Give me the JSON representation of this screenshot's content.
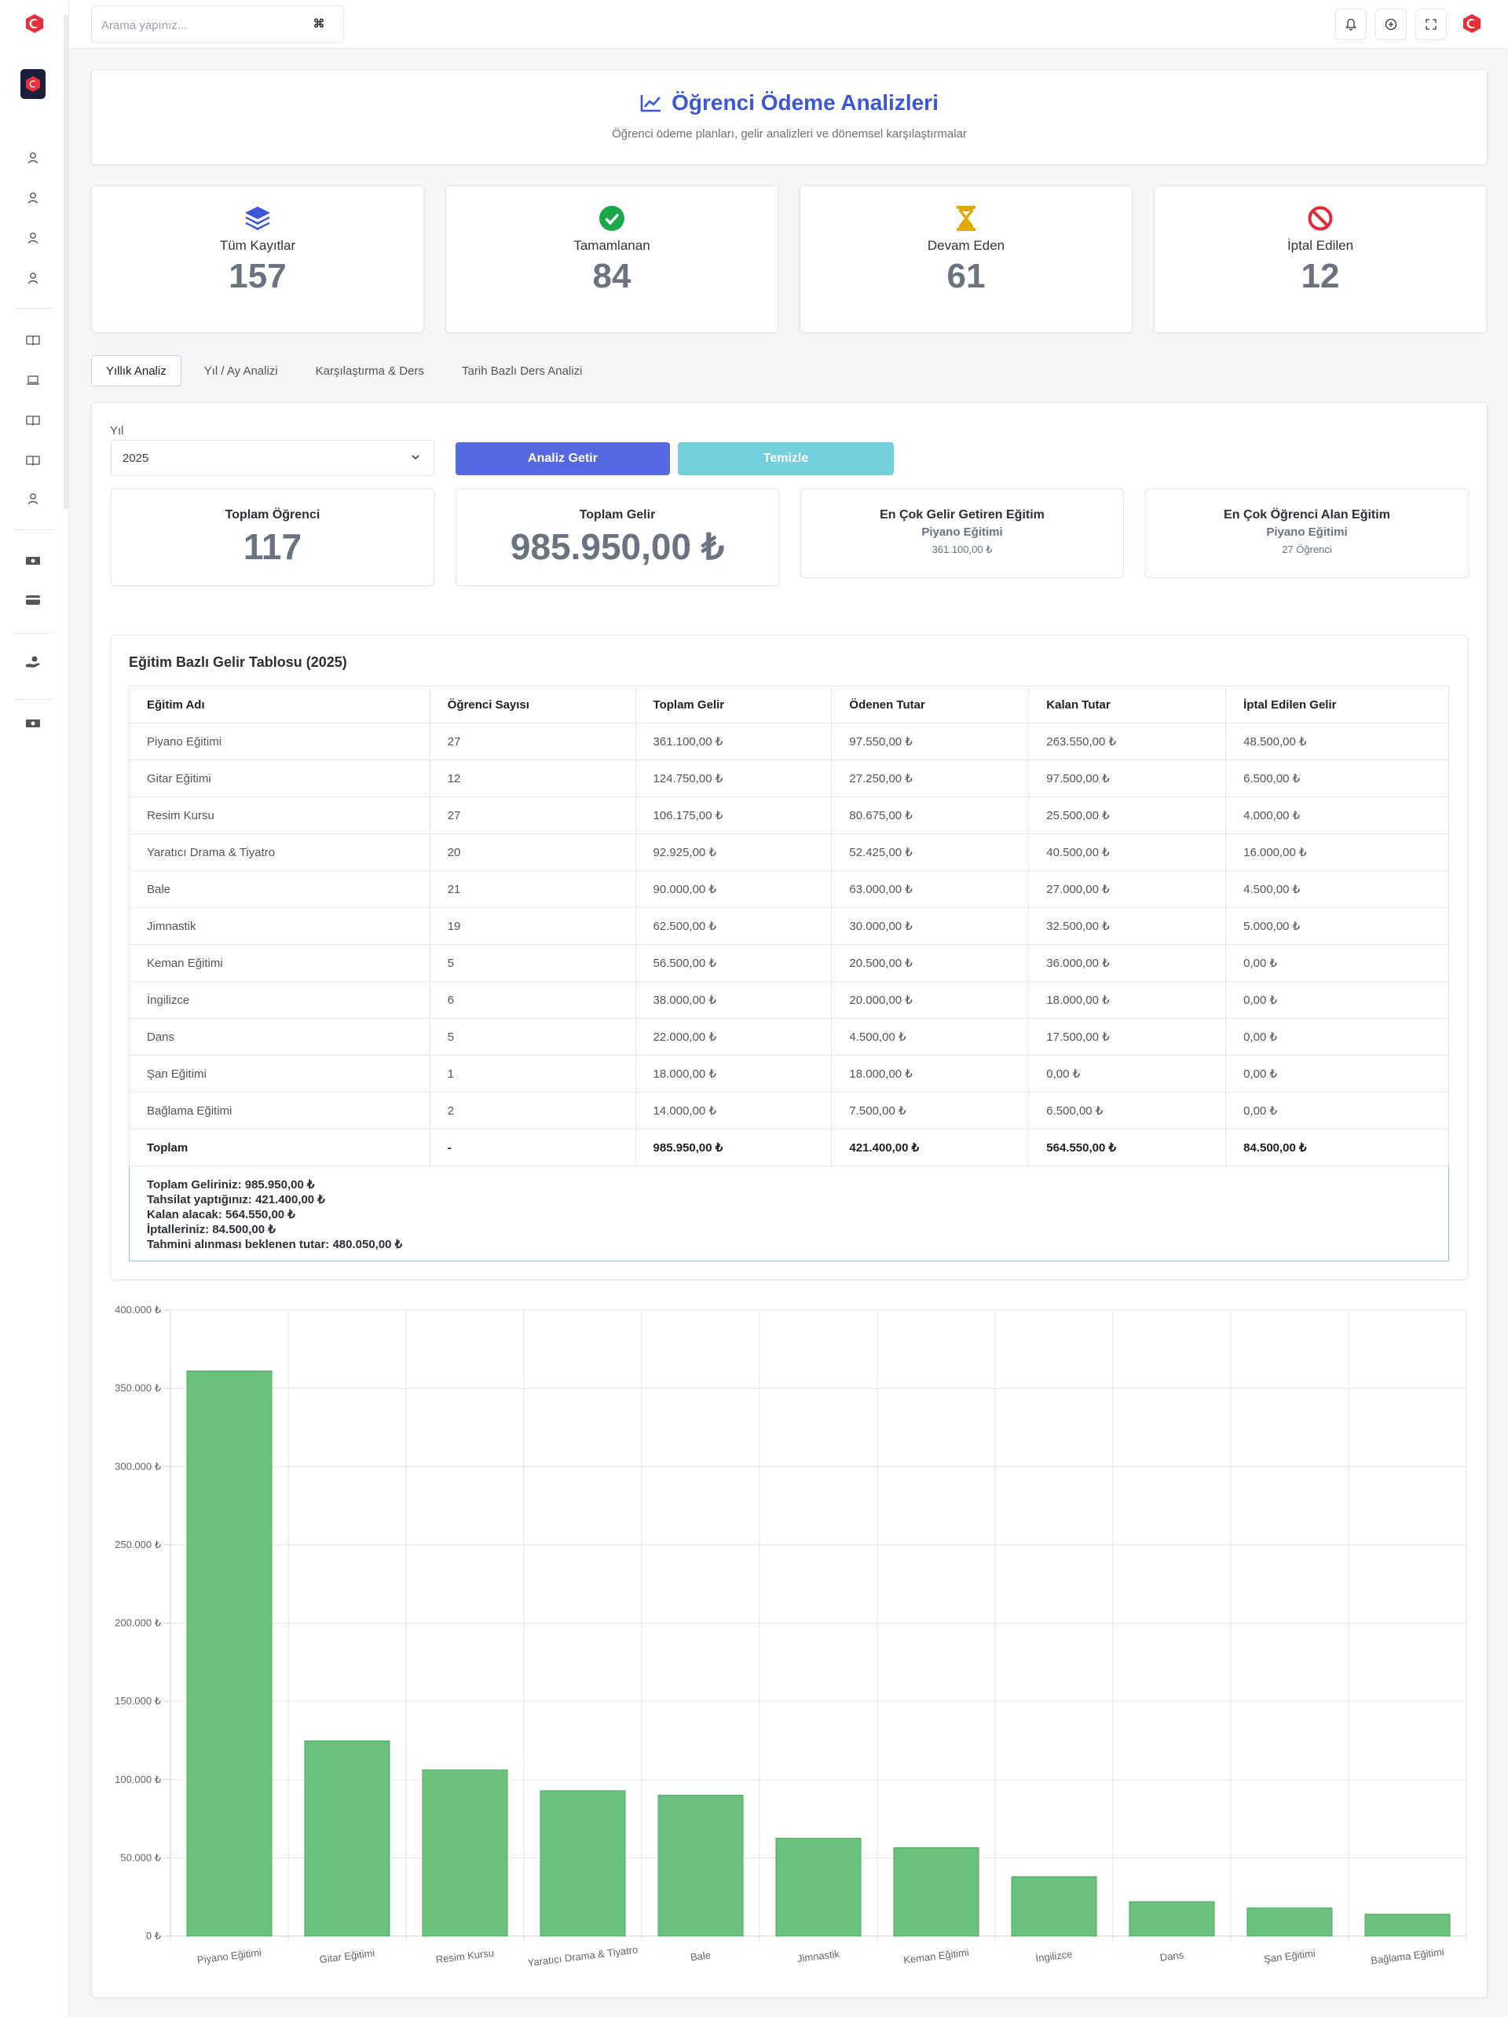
{
  "search": {
    "placeholder": "Arama yapınız...",
    "shortcut": "⌘"
  },
  "header": {
    "title": "Öğrenci Ödeme Analizleri",
    "subtitle": "Öğrenci ödeme planları, gelir analizleri ve dönemsel karşılaştırmalar"
  },
  "stats": [
    {
      "label": "Tüm Kayıtlar",
      "value": "157",
      "icon": "layers-icon",
      "color": "#3b56d6"
    },
    {
      "label": "Tamamlanan",
      "value": "84",
      "icon": "check-circle-icon",
      "color": "#1aa84a"
    },
    {
      "label": "Devam Eden",
      "value": "61",
      "icon": "hourglass-icon",
      "color": "#e0a800"
    },
    {
      "label": "İptal Edilen",
      "value": "12",
      "icon": "ban-icon",
      "color": "#dc2c3c"
    }
  ],
  "tabs": [
    "Yıllık Analiz",
    "Yıl / Ay Analizi",
    "Karşılaştırma & Ders",
    "Tarih Bazlı Ders Analizi"
  ],
  "filter": {
    "year_label": "Yıl",
    "year_value": "2025",
    "analyze_button": "Analiz Getir",
    "clear_button": "Temizle"
  },
  "summary": {
    "total_students_label": "Toplam Öğrenci",
    "total_students": "117",
    "total_income_label": "Toplam Gelir",
    "total_income": "985.950,00 ₺",
    "top_income_label": "En Çok Gelir Getiren Eğitim",
    "top_income_course": "Piyano Eğitimi",
    "top_income_amount": "361.100,00 ₺",
    "top_students_label": "En Çok Öğrenci Alan Eğitim",
    "top_students_course": "Piyano Eğitimi",
    "top_students_count": "27 Öğrenci"
  },
  "table": {
    "title": "Eğitim Bazlı Gelir Tablosu (2025)",
    "headers": [
      "Eğitim Adı",
      "Öğrenci Sayısı",
      "Toplam Gelir",
      "Ödenen Tutar",
      "Kalan Tutar",
      "İptal Edilen Gelir"
    ],
    "rows": [
      [
        "Piyano Eğitimi",
        "27",
        "361.100,00 ₺",
        "97.550,00 ₺",
        "263.550,00 ₺",
        "48.500,00 ₺"
      ],
      [
        "Gitar Eğitimi",
        "12",
        "124.750,00 ₺",
        "27.250,00 ₺",
        "97.500,00 ₺",
        "6.500,00 ₺"
      ],
      [
        "Resim Kursu",
        "27",
        "106.175,00 ₺",
        "80.675,00 ₺",
        "25.500,00 ₺",
        "4.000,00 ₺"
      ],
      [
        "Yaratıcı Drama & Tiyatro",
        "20",
        "92.925,00 ₺",
        "52.425,00 ₺",
        "40.500,00 ₺",
        "16.000,00 ₺"
      ],
      [
        "Bale",
        "21",
        "90.000,00 ₺",
        "63.000,00 ₺",
        "27.000,00 ₺",
        "4.500,00 ₺"
      ],
      [
        "Jimnastik",
        "19",
        "62.500,00 ₺",
        "30.000,00 ₺",
        "32.500,00 ₺",
        "5.000,00 ₺"
      ],
      [
        "Keman Eğitimi",
        "5",
        "56.500,00 ₺",
        "20.500,00 ₺",
        "36.000,00 ₺",
        "0,00 ₺"
      ],
      [
        "İngilizce",
        "6",
        "38.000,00 ₺",
        "20.000,00 ₺",
        "18.000,00 ₺",
        "0,00 ₺"
      ],
      [
        "Dans",
        "5",
        "22.000,00 ₺",
        "4.500,00 ₺",
        "17.500,00 ₺",
        "0,00 ₺"
      ],
      [
        "Şan Eğitimi",
        "1",
        "18.000,00 ₺",
        "18.000,00 ₺",
        "0,00 ₺",
        "0,00 ₺"
      ],
      [
        "Bağlama Eğitimi",
        "2",
        "14.000,00 ₺",
        "7.500,00 ₺",
        "6.500,00 ₺",
        "0,00 ₺"
      ]
    ],
    "total_row": [
      "Toplam",
      "-",
      "985.950,00 ₺",
      "421.400,00 ₺",
      "564.550,00 ₺",
      "84.500,00 ₺"
    ]
  },
  "summary_lines": [
    "Toplam Geliriniz: 985.950,00 ₺",
    "Tahsilat yaptığınız: 421.400,00 ₺",
    "Kalan alacak: 564.550,00 ₺",
    "İptalleriniz: 84.500,00 ₺",
    "Tahmini alınması beklenen tutar: 480.050,00 ₺"
  ],
  "chart_data": {
    "type": "bar",
    "categories": [
      "Piyano Eğitimi",
      "Gitar Eğitimi",
      "Resim Kursu",
      "Yaratıcı Drama & Tiyatro",
      "Bale",
      "Jimnastik",
      "Keman Eğitimi",
      "İngilizce",
      "Dans",
      "Şan Eğitimi",
      "Bağlama Eğitimi"
    ],
    "values": [
      361100,
      124750,
      106175,
      92925,
      90000,
      62500,
      56500,
      38000,
      22000,
      18000,
      14000
    ],
    "ylim": [
      0,
      400000
    ],
    "yticks": [
      "0 ₺",
      "50.000 ₺",
      "100.000 ₺",
      "150.000 ₺",
      "200.000 ₺",
      "250.000 ₺",
      "300.000 ₺",
      "350.000 ₺",
      "400.000 ₺"
    ],
    "bar_color": "#6ac17c",
    "bar_border": "#4caa5f",
    "grid": true
  }
}
